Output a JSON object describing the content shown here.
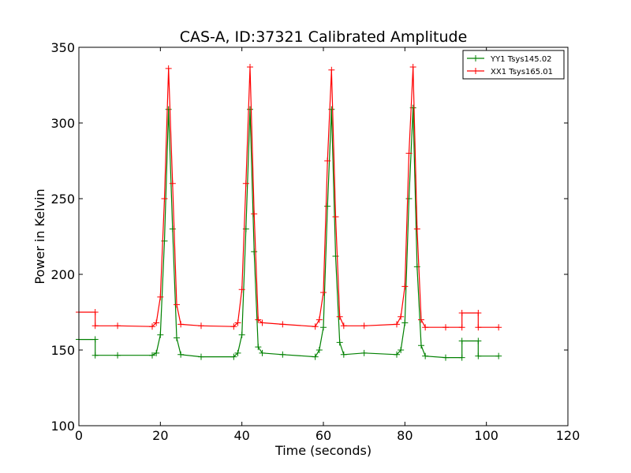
{
  "chart_data": {
    "type": "line",
    "title": "CAS-A, ID:37321 Calibrated Amplitude",
    "xlabel": "Time (seconds)",
    "ylabel": "Power in Kelvin",
    "xlim": [
      0,
      120
    ],
    "ylim": [
      100,
      350
    ],
    "xticks": [
      0,
      20,
      40,
      60,
      80,
      100,
      120
    ],
    "yticks": [
      100,
      150,
      200,
      250,
      300,
      350
    ],
    "grid": false,
    "legend_position": "top-right",
    "marker": "+",
    "series": [
      {
        "name": "YY1 Tsys145.02",
        "color": "#008000",
        "x": [
          0,
          4,
          4,
          9.5,
          18,
          19,
          20,
          21,
          22,
          23,
          24,
          25,
          30,
          38,
          39,
          40,
          41,
          42,
          43,
          44,
          45,
          50,
          58,
          59,
          60,
          61,
          62,
          63,
          64,
          65,
          70,
          78,
          79,
          80,
          81,
          82,
          83,
          84,
          85,
          90,
          94,
          94,
          98,
          98,
          103
        ],
        "y": [
          157,
          157,
          146.5,
          146.5,
          146.5,
          148,
          160,
          222,
          309,
          230,
          158,
          147,
          145.5,
          145.5,
          148,
          160,
          230,
          309,
          215,
          152,
          148,
          147,
          145.5,
          150,
          165,
          245,
          309,
          212,
          155,
          147,
          148,
          147,
          150,
          168,
          250,
          310,
          205,
          153,
          146,
          145,
          145,
          156,
          156,
          146,
          146
        ]
      },
      {
        "name": "XX1 Tsys165.01",
        "color": "#ff0000",
        "x": [
          0,
          4,
          4,
          9.5,
          18,
          19,
          20,
          21,
          22,
          23,
          24,
          25,
          30,
          38,
          39,
          40,
          41,
          42,
          43,
          44,
          45,
          50,
          58,
          59,
          60,
          61,
          62,
          63,
          64,
          65,
          70,
          78,
          79,
          80,
          81,
          82,
          83,
          84,
          85,
          90,
          94,
          94,
          98,
          98,
          103
        ],
        "y": [
          175,
          175,
          166,
          166,
          165.5,
          168,
          185,
          250,
          336,
          260,
          180,
          167,
          166,
          165.5,
          168,
          190,
          260,
          337,
          240,
          170,
          168,
          167,
          165.5,
          170,
          188,
          275,
          335,
          238,
          172,
          166,
          166,
          167,
          172,
          192,
          280,
          337,
          230,
          170,
          165,
          165,
          165,
          174.5,
          174.5,
          165,
          165
        ]
      }
    ]
  }
}
